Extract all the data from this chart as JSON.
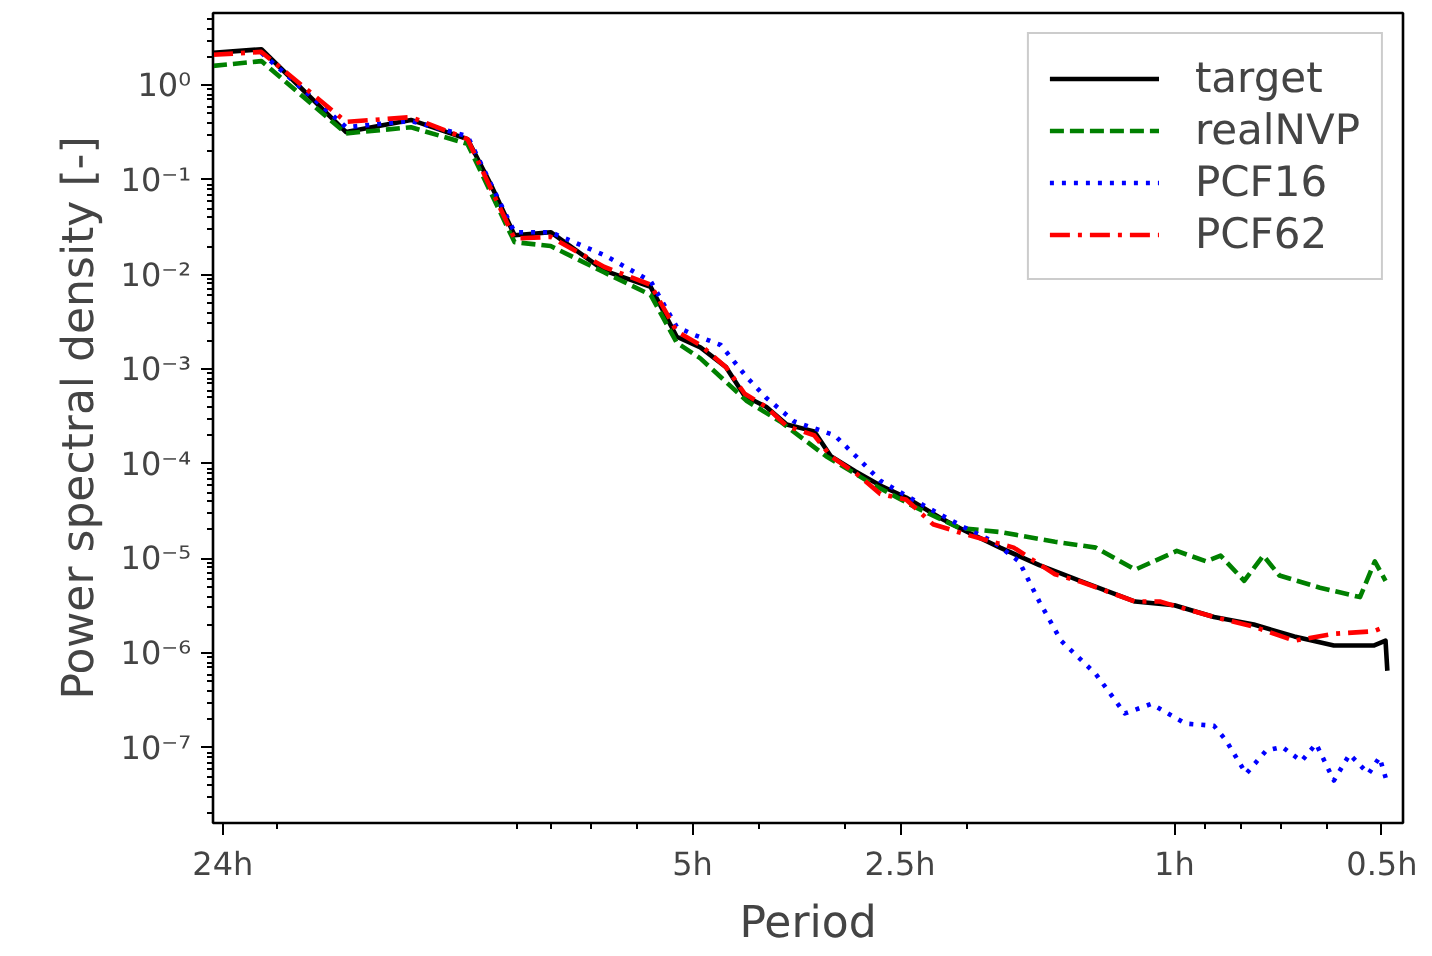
{
  "chart_data": {
    "type": "line",
    "xlabel": "Period",
    "ylabel": "Power spectral density [-]",
    "log": "xy",
    "grid": false,
    "legend": "top right",
    "marker": "none",
    "xlim": [
      24.8,
      0.466
    ],
    "ylim": [
      1.6e-08,
      5.8
    ],
    "xticks": [
      {
        "value": 24,
        "label": "24h"
      },
      {
        "value": 5,
        "label": "5h"
      },
      {
        "value": 2.5,
        "label": "2.5h"
      },
      {
        "value": 1,
        "label": "1h"
      },
      {
        "value": 0.5,
        "label": "0.5h"
      }
    ],
    "yticks": [
      {
        "value": 1e-07,
        "label": "10⁻⁷"
      },
      {
        "value": 1e-06,
        "label": "10⁻⁶"
      },
      {
        "value": 1e-05,
        "label": "10⁻⁵"
      },
      {
        "value": 0.0001,
        "label": "10⁻⁴"
      },
      {
        "value": 0.001,
        "label": "10⁻³"
      },
      {
        "value": 0.01,
        "label": "10⁻²"
      },
      {
        "value": 0.1,
        "label": "10⁻¹"
      },
      {
        "value": 1,
        "label": "10⁰"
      }
    ],
    "series": [
      {
        "name": "target",
        "color": "#000000",
        "line_style": "solid",
        "x": [
          24.8,
          21.1,
          15.9,
          12.8,
          10.6,
          9.81,
          9.06,
          8.03,
          6.71,
          5.75,
          5.27,
          4.87,
          4.47,
          4.2,
          3.91,
          3.65,
          3.33,
          3.15,
          2.9,
          2.67,
          2.45,
          2.19,
          2.01,
          1.79,
          1.57,
          1.37,
          1.14,
          1.0,
          0.876,
          0.767,
          0.67,
          0.587,
          0.514,
          0.494,
          0.491
        ],
        "values": [
          2.2,
          2.4,
          0.32,
          0.43,
          0.27,
          0.09,
          0.026,
          0.028,
          0.011,
          0.0074,
          0.0022,
          0.0017,
          0.00105,
          0.00052,
          0.0004,
          0.00026,
          0.00022,
          0.00012,
          8.3e-05,
          5.9e-05,
          4.4e-05,
          2.7e-05,
          1.95e-05,
          1.3e-05,
          8.5e-06,
          5.8e-06,
          3.5e-06,
          3.2e-06,
          2.4e-06,
          2e-06,
          1.5e-06,
          1.2e-06,
          1.2e-06,
          1.35e-06,
          6.5e-07
        ]
      },
      {
        "name": "realNVP",
        "color": "#008000",
        "line_style": "dashed",
        "x": [
          24.8,
          21.1,
          15.9,
          12.8,
          10.6,
          9.06,
          8.03,
          6.71,
          5.75,
          5.27,
          4.87,
          4.17,
          3.73,
          3.2,
          2.72,
          2.38,
          2.05,
          1.79,
          1.49,
          1.3,
          1.14,
          0.992,
          0.899,
          0.857,
          0.792,
          0.743,
          0.704,
          0.615,
          0.538,
          0.512,
          0.494
        ],
        "values": [
          1.6,
          1.8,
          0.31,
          0.36,
          0.24,
          0.022,
          0.02,
          0.0105,
          0.0061,
          0.0019,
          0.0013,
          0.00046,
          0.00028,
          0.00012,
          5.9e-05,
          3.5e-05,
          2.1e-05,
          1.9e-05,
          1.5e-05,
          1.3e-05,
          7.6e-06,
          1.2e-05,
          9.3e-06,
          1.07e-05,
          5.8e-06,
          1.07e-05,
          6.6e-06,
          4.9e-06,
          3.9e-06,
          9.3e-06,
          5.8e-06
        ]
      },
      {
        "name": "PCF16",
        "color": "#0000ff",
        "line_style": "dotted",
        "x": [
          21.1,
          15.9,
          12.8,
          10.6,
          9.06,
          8.03,
          6.71,
          5.75,
          5.27,
          4.97,
          4.55,
          4.17,
          3.91,
          3.56,
          3.11,
          2.85,
          2.67,
          2.29,
          2.01,
          1.83,
          1.68,
          1.57,
          1.46,
          1.3,
          1.18,
          1.08,
          0.964,
          0.876,
          0.842,
          0.787,
          0.736,
          0.698,
          0.654,
          0.623,
          0.587,
          0.557,
          0.523,
          0.504,
          0.491
        ],
        "values": [
          2.2,
          0.36,
          0.42,
          0.29,
          0.028,
          0.028,
          0.016,
          0.0085,
          0.0028,
          0.0023,
          0.0018,
          0.00082,
          0.0005,
          0.00028,
          0.0002,
          0.000107,
          6.6e-05,
          3.5e-05,
          2.1e-05,
          1.5e-05,
          9.3e-06,
          3.5e-06,
          1.35e-06,
          6e-07,
          2.3e-07,
          2.9e-07,
          1.8e-07,
          1.7e-07,
          1.2e-07,
          5.3e-08,
          9.3e-08,
          1.02e-07,
          7.2e-08,
          1.1e-07,
          4.5e-08,
          8.5e-08,
          5.3e-08,
          7.9e-08,
          4.2e-08
        ]
      },
      {
        "name": "PCF62",
        "color": "#ff0000",
        "line_style": "dashdot",
        "x": [
          24.8,
          21.1,
          15.9,
          12.8,
          10.6,
          9.06,
          8.03,
          6.71,
          5.75,
          5.27,
          4.87,
          4.47,
          4.2,
          3.91,
          3.65,
          3.33,
          3.15,
          2.9,
          2.67,
          2.45,
          2.24,
          2.01,
          1.71,
          1.49,
          1.37,
          1.14,
          1.05,
          0.876,
          0.767,
          0.67,
          0.587,
          0.514,
          0.494
        ],
        "values": [
          2.1,
          2.25,
          0.41,
          0.46,
          0.27,
          0.024,
          0.025,
          0.012,
          0.0078,
          0.0025,
          0.0018,
          0.00105,
          0.00055,
          0.0004,
          0.00025,
          0.0002,
          0.00012,
          8e-05,
          4.8e-05,
          4.2e-05,
          2.3e-05,
          1.8e-05,
          1.3e-05,
          6.8e-06,
          5.7e-06,
          3.5e-06,
          3.5e-06,
          2.4e-06,
          1.9e-06,
          1.35e-06,
          1.6e-06,
          1.7e-06,
          1.9e-06
        ]
      }
    ]
  }
}
